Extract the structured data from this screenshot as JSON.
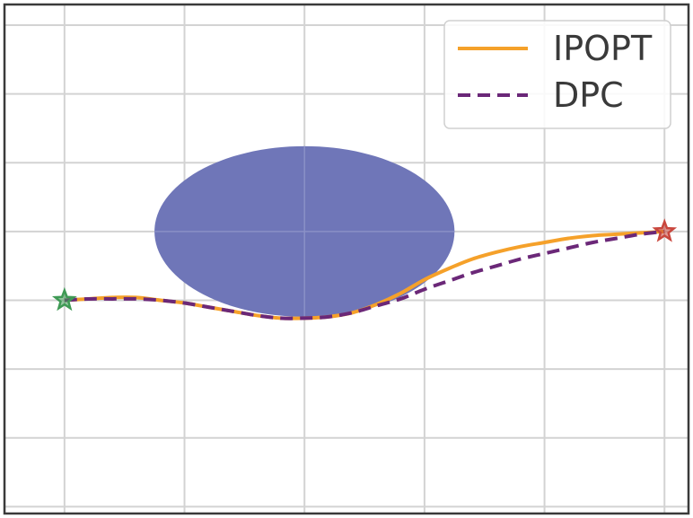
{
  "chart_data": {
    "type": "line",
    "title": "",
    "xlabel": "",
    "ylabel": "",
    "xlim": [
      -0.5,
      5.2
    ],
    "ylim": [
      -1.55,
      2.15
    ],
    "grid": true,
    "legend_position": "top-right",
    "x_ticks": [
      0,
      1,
      2,
      3,
      4,
      5
    ],
    "y_ticks": [
      -1.5,
      -1.0,
      -0.5,
      0.0,
      0.5,
      1.0,
      1.5,
      2.0
    ],
    "obstacle": {
      "shape": "ellipse",
      "cx": 2.0,
      "cy": 0.5,
      "rx": 1.25,
      "ry": 0.62,
      "color": "#6f76b8"
    },
    "start_marker": {
      "x": 0.0,
      "y": 0.0,
      "color": "#3f9a55"
    },
    "end_marker": {
      "x": 5.0,
      "y": 0.5,
      "color": "#c9463d"
    },
    "series": [
      {
        "name": "IPOPT",
        "style": "solid",
        "color": "#f5a12a",
        "x": [
          0.0,
          0.2,
          0.4,
          0.6,
          0.8,
          1.0,
          1.2,
          1.4,
          1.6,
          1.8,
          2.0,
          2.2,
          2.4,
          2.6,
          2.8,
          3.0,
          3.2,
          3.4,
          3.6,
          3.8,
          4.0,
          4.2,
          4.4,
          4.6,
          4.8,
          5.0
        ],
        "y": [
          0.0,
          0.01,
          0.02,
          0.02,
          0.0,
          -0.02,
          -0.05,
          -0.08,
          -0.11,
          -0.13,
          -0.13,
          -0.12,
          -0.09,
          -0.03,
          0.05,
          0.15,
          0.23,
          0.3,
          0.35,
          0.39,
          0.42,
          0.45,
          0.47,
          0.48,
          0.49,
          0.5
        ]
      },
      {
        "name": "DPC",
        "style": "dashed",
        "color": "#6b2878",
        "x": [
          0.0,
          0.2,
          0.4,
          0.6,
          0.8,
          1.0,
          1.2,
          1.4,
          1.6,
          1.8,
          2.0,
          2.2,
          2.4,
          2.6,
          2.8,
          3.0,
          3.2,
          3.4,
          3.6,
          3.8,
          4.0,
          4.2,
          4.4,
          4.6,
          4.8,
          5.0
        ],
        "y": [
          0.0,
          0.01,
          0.01,
          0.01,
          0.0,
          -0.02,
          -0.05,
          -0.08,
          -0.11,
          -0.13,
          -0.13,
          -0.12,
          -0.09,
          -0.04,
          0.01,
          0.08,
          0.14,
          0.2,
          0.25,
          0.3,
          0.34,
          0.38,
          0.42,
          0.45,
          0.48,
          0.5
        ]
      }
    ]
  }
}
